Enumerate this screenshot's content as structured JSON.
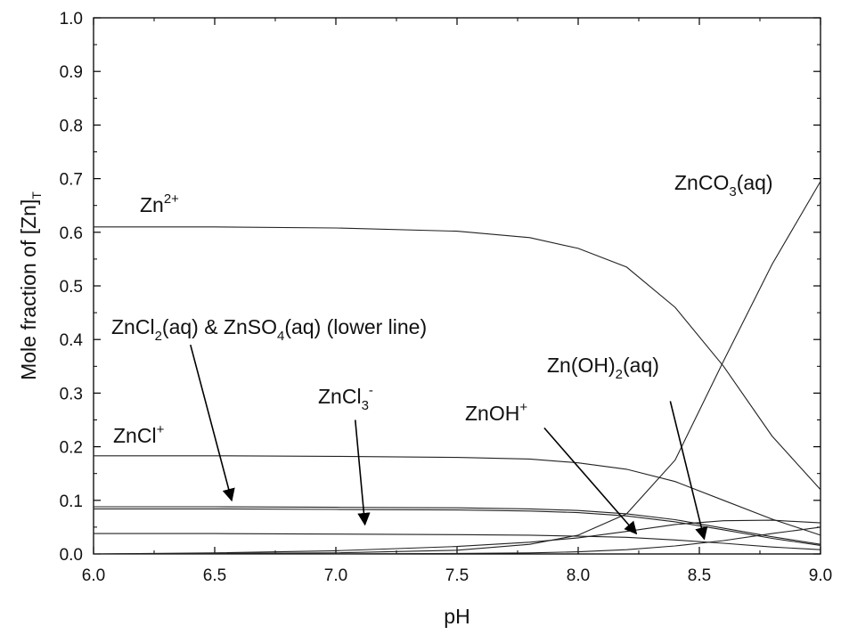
{
  "chart_data": {
    "type": "line",
    "xlabel": "pH",
    "ylabel": "Mole fraction of [Zn]",
    "ylabel_sub": "T",
    "xlim": [
      6.0,
      9.0
    ],
    "ylim": [
      0.0,
      1.0
    ],
    "xticks": [
      "6.0",
      "6.5",
      "7.0",
      "7.5",
      "8.0",
      "8.5",
      "9.0"
    ],
    "yticks": [
      "0.0",
      "0.1",
      "0.2",
      "0.3",
      "0.4",
      "0.5",
      "0.6",
      "0.7",
      "0.8",
      "0.9",
      "1.0"
    ],
    "grid": false,
    "series": [
      {
        "name": "Zn2+",
        "x": [
          6.0,
          6.5,
          7.0,
          7.5,
          7.8,
          8.0,
          8.2,
          8.4,
          8.6,
          8.8,
          9.0
        ],
        "y": [
          0.61,
          0.61,
          0.608,
          0.602,
          0.59,
          0.57,
          0.535,
          0.46,
          0.35,
          0.22,
          0.12
        ]
      },
      {
        "name": "ZnCO3(aq)",
        "x": [
          6.0,
          6.5,
          7.0,
          7.5,
          7.8,
          8.0,
          8.2,
          8.4,
          8.6,
          8.8,
          9.0
        ],
        "y": [
          0.0,
          0.001,
          0.002,
          0.007,
          0.018,
          0.035,
          0.075,
          0.175,
          0.36,
          0.54,
          0.695
        ]
      },
      {
        "name": "ZnCl+",
        "x": [
          6.0,
          6.5,
          7.0,
          7.5,
          7.8,
          8.0,
          8.2,
          8.4,
          8.6,
          8.8,
          9.0
        ],
        "y": [
          0.183,
          0.183,
          0.182,
          0.18,
          0.177,
          0.17,
          0.158,
          0.135,
          0.1,
          0.065,
          0.035
        ]
      },
      {
        "name": "ZnCl2(aq)",
        "x": [
          6.0,
          6.5,
          7.0,
          7.5,
          7.8,
          8.0,
          8.2,
          8.4,
          8.6,
          8.8,
          9.0
        ],
        "y": [
          0.088,
          0.088,
          0.087,
          0.086,
          0.084,
          0.081,
          0.075,
          0.064,
          0.048,
          0.032,
          0.018
        ]
      },
      {
        "name": "ZnSO4(aq)",
        "x": [
          6.0,
          6.5,
          7.0,
          7.5,
          7.8,
          8.0,
          8.2,
          8.4,
          8.6,
          8.8,
          9.0
        ],
        "y": [
          0.084,
          0.084,
          0.083,
          0.082,
          0.08,
          0.077,
          0.071,
          0.06,
          0.045,
          0.029,
          0.016
        ]
      },
      {
        "name": "ZnCl3-",
        "x": [
          6.0,
          6.5,
          7.0,
          7.5,
          7.8,
          8.0,
          8.2,
          8.4,
          8.6,
          8.8,
          9.0
        ],
        "y": [
          0.038,
          0.038,
          0.037,
          0.036,
          0.035,
          0.033,
          0.031,
          0.026,
          0.02,
          0.013,
          0.008
        ]
      },
      {
        "name": "ZnOH+",
        "x": [
          6.0,
          6.5,
          7.0,
          7.5,
          7.8,
          8.0,
          8.2,
          8.4,
          8.6,
          8.8,
          9.0
        ],
        "y": [
          0.0,
          0.002,
          0.006,
          0.014,
          0.022,
          0.03,
          0.042,
          0.055,
          0.062,
          0.063,
          0.058
        ]
      },
      {
        "name": "Zn(OH)2(aq)",
        "x": [
          6.0,
          6.5,
          7.0,
          7.5,
          7.8,
          8.0,
          8.2,
          8.4,
          8.6,
          8.8,
          9.0
        ],
        "y": [
          0.0,
          0.0,
          0.0,
          0.001,
          0.002,
          0.004,
          0.008,
          0.015,
          0.025,
          0.038,
          0.05
        ]
      }
    ],
    "annotations": [
      {
        "id": "zn2",
        "parts": [
          {
            "t": "Zn"
          },
          {
            "t": "2+",
            "s": "sup"
          }
        ]
      },
      {
        "id": "znco3",
        "parts": [
          {
            "t": "ZnCO"
          },
          {
            "t": "3",
            "s": "sub"
          },
          {
            "t": "(aq)"
          }
        ]
      },
      {
        "id": "zncl2",
        "parts": [
          {
            "t": "ZnCl"
          },
          {
            "t": "2",
            "s": "sub"
          },
          {
            "t": "(aq) & ZnSO"
          },
          {
            "t": "4",
            "s": "sub"
          },
          {
            "t": "(aq) (lower line)"
          }
        ]
      },
      {
        "id": "zncl3",
        "parts": [
          {
            "t": "ZnCl"
          },
          {
            "t": "3",
            "s": "sub"
          },
          {
            "t": "-",
            "s": "sup"
          }
        ]
      },
      {
        "id": "znoh2",
        "parts": [
          {
            "t": "Zn(OH)"
          },
          {
            "t": "2",
            "s": "sub"
          },
          {
            "t": "(aq)"
          }
        ]
      },
      {
        "id": "znoh",
        "parts": [
          {
            "t": "ZnOH"
          },
          {
            "t": "+",
            "s": "sup"
          }
        ]
      },
      {
        "id": "zncl",
        "parts": [
          {
            "t": "ZnCl"
          },
          {
            "t": "+",
            "s": "sup"
          }
        ]
      }
    ],
    "arrows": [
      {
        "id": "zncl2",
        "from": [
          6.4,
          0.39
        ],
        "to": [
          6.57,
          0.1
        ]
      },
      {
        "id": "zncl3",
        "from": [
          7.08,
          0.25
        ],
        "to": [
          7.12,
          0.055
        ]
      },
      {
        "id": "znoh",
        "from": [
          7.86,
          0.235
        ],
        "to": [
          8.24,
          0.038
        ]
      },
      {
        "id": "znoh2",
        "from": [
          8.38,
          0.285
        ],
        "to": [
          8.52,
          0.028
        ]
      }
    ]
  }
}
